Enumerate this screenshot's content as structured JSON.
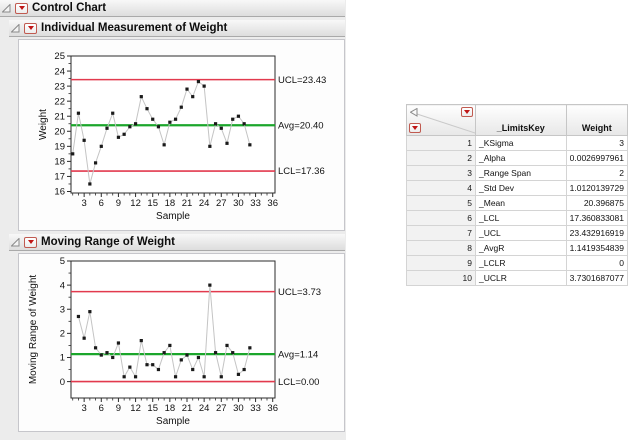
{
  "outline": {
    "root_label": "Control Chart",
    "section1_label": "Individual Measurement of Weight",
    "section2_label": "Moving Range of Weight"
  },
  "colors": {
    "limit_red": "#e23a4e",
    "center_green": "#1ba62b",
    "series_line": "#c4c4c4",
    "marker": "#1a1a1a",
    "tick_text": "#111111"
  },
  "chart_data": [
    {
      "type": "line",
      "name": "individual-measurement",
      "title": "Individual Measurement of Weight",
      "xlabel": "Sample",
      "ylabel": "Weight",
      "x": [
        1,
        2,
        3,
        4,
        5,
        6,
        7,
        8,
        9,
        10,
        11,
        12,
        13,
        14,
        15,
        16,
        17,
        18,
        19,
        20,
        21,
        22,
        23,
        24,
        25,
        26,
        27,
        28,
        29,
        30,
        31,
        32
      ],
      "values": [
        18.5,
        21.2,
        19.4,
        16.5,
        17.9,
        19.0,
        20.2,
        21.2,
        19.6,
        19.8,
        20.3,
        20.5,
        22.3,
        21.5,
        20.8,
        20.3,
        19.1,
        20.6,
        20.8,
        21.6,
        22.8,
        22.3,
        23.3,
        23.0,
        19.0,
        20.5,
        20.2,
        19.2,
        20.8,
        21.0,
        20.5,
        19.1
      ],
      "limits": {
        "ucl": 23.43,
        "avg": 20.4,
        "lcl": 17.36
      },
      "limit_labels": {
        "ucl": "UCL=23.43",
        "avg": "Avg=20.40",
        "lcl": "LCL=17.36"
      },
      "xlim": [
        0.7,
        36.4
      ],
      "ylim": [
        15.9,
        25
      ],
      "yticks": [
        16,
        17,
        18,
        19,
        20,
        21,
        22,
        23,
        24,
        25
      ],
      "xticks": [
        3,
        6,
        9,
        12,
        15,
        18,
        21,
        24,
        27,
        30,
        33,
        36
      ],
      "x_minor_step": 1,
      "y_minor_step": 0.5,
      "grid": false,
      "legend": "none"
    },
    {
      "type": "line",
      "name": "moving-range",
      "title": "Moving Range of Weight",
      "xlabel": "Sample",
      "ylabel": "Moving Range of Weight",
      "x": [
        2,
        3,
        4,
        5,
        6,
        7,
        8,
        9,
        10,
        11,
        12,
        13,
        14,
        15,
        16,
        17,
        18,
        19,
        20,
        21,
        22,
        23,
        24,
        25,
        26,
        27,
        28,
        29,
        30,
        31,
        32
      ],
      "values": [
        2.7,
        1.8,
        2.9,
        1.4,
        1.1,
        1.2,
        1.0,
        1.6,
        0.2,
        0.6,
        0.2,
        1.7,
        0.7,
        0.7,
        0.5,
        1.2,
        1.5,
        0.2,
        0.9,
        1.1,
        0.5,
        1.0,
        0.2,
        4.0,
        1.2,
        0.2,
        1.5,
        1.2,
        0.3,
        0.5,
        1.4
      ],
      "limits": {
        "ucl": 3.73,
        "avg": 1.14,
        "lcl": 0.0
      },
      "limit_labels": {
        "ucl": "UCL=3.73",
        "avg": "Avg=1.14",
        "lcl": "LCL=0.00"
      },
      "xlim": [
        0.7,
        36.4
      ],
      "ylim": [
        -0.68,
        5
      ],
      "yticks": [
        0,
        1,
        2,
        3,
        4,
        5
      ],
      "xticks": [
        3,
        6,
        9,
        12,
        15,
        18,
        21,
        24,
        27,
        30,
        33,
        36
      ],
      "x_minor_step": 1,
      "y_minor_step": 0.5,
      "grid": false,
      "legend": "none"
    }
  ],
  "table": {
    "columns": [
      {
        "label": "_LimitsKey"
      },
      {
        "label": "Weight"
      }
    ],
    "rows": [
      {
        "n": "1",
        "key": "_KSigma",
        "value": "3"
      },
      {
        "n": "2",
        "key": "_Alpha",
        "value": "0.0026997961"
      },
      {
        "n": "3",
        "key": "_Range Span",
        "value": "2"
      },
      {
        "n": "4",
        "key": "_Std Dev",
        "value": "1.0120139729"
      },
      {
        "n": "5",
        "key": "_Mean",
        "value": "20.396875"
      },
      {
        "n": "6",
        "key": "_LCL",
        "value": "17.360833081"
      },
      {
        "n": "7",
        "key": "_UCL",
        "value": "23.432916919"
      },
      {
        "n": "8",
        "key": "_AvgR",
        "value": "1.1419354839"
      },
      {
        "n": "9",
        "key": "_LCLR",
        "value": "0"
      },
      {
        "n": "10",
        "key": "_UCLR",
        "value": "3.7301687077"
      }
    ]
  }
}
